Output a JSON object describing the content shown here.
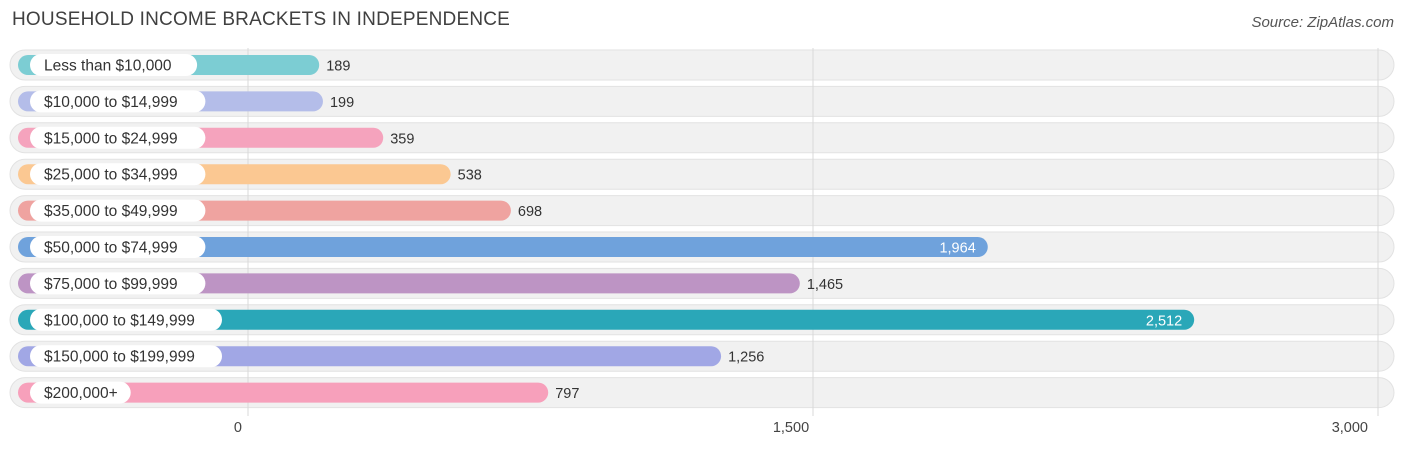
{
  "title": "HOUSEHOLD INCOME BRACKETS IN INDEPENDENCE",
  "source": "Source: ZipAtlas.com",
  "chart_data": {
    "type": "bar",
    "orientation": "horizontal",
    "title": "HOUSEHOLD INCOME BRACKETS IN INDEPENDENCE",
    "xlabel": "",
    "ylabel": "",
    "xlim": [
      0,
      3000
    ],
    "x_ticks": [
      0,
      1500,
      3000
    ],
    "x_tick_labels": [
      "0",
      "1,500",
      "3,000"
    ],
    "grid": true,
    "categories": [
      "Less than $10,000",
      "$10,000 to $14,999",
      "$15,000 to $24,999",
      "$25,000 to $34,999",
      "$35,000 to $49,999",
      "$50,000 to $74,999",
      "$75,000 to $99,999",
      "$100,000 to $149,999",
      "$150,000 to $199,999",
      "$200,000+"
    ],
    "values": [
      189,
      199,
      359,
      538,
      698,
      1964,
      1465,
      2512,
      1256,
      797
    ],
    "value_labels": [
      "189",
      "199",
      "359",
      "538",
      "698",
      "1,964",
      "1,465",
      "2,512",
      "1,256",
      "797"
    ],
    "colors": [
      "#7ccdd3",
      "#b4bde9",
      "#f5a3bd",
      "#fbc892",
      "#efa3a0",
      "#6fa2dc",
      "#bd94c4",
      "#2aa7b8",
      "#a1a7e5",
      "#f7a0bb"
    ]
  }
}
